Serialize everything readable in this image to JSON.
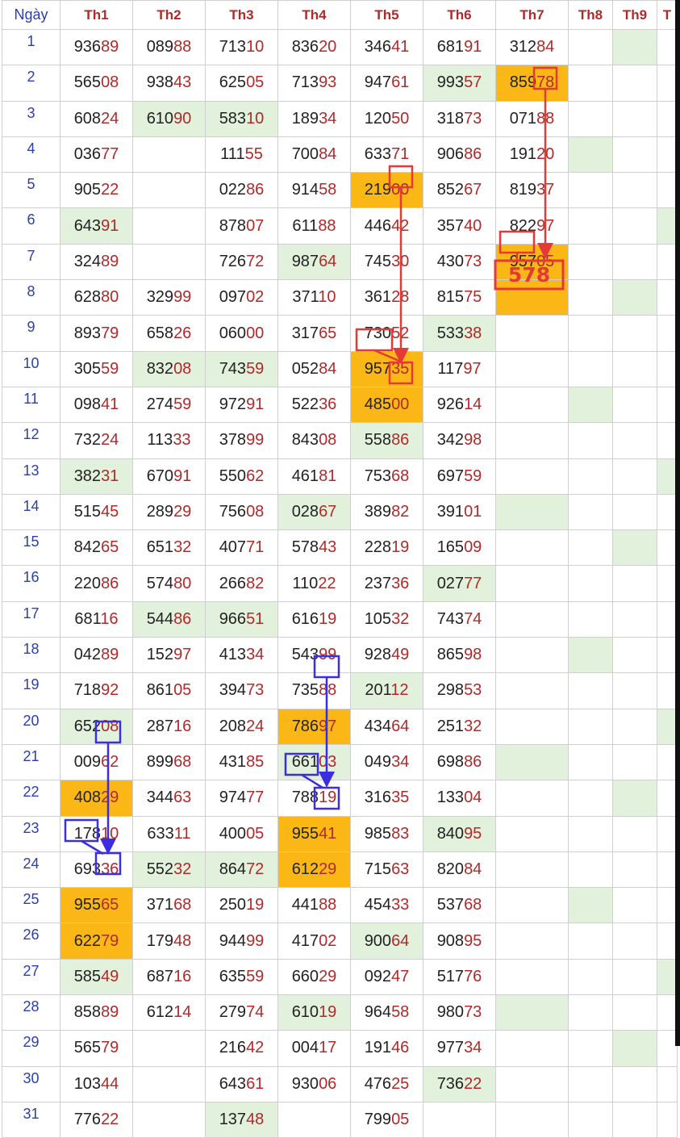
{
  "header": {
    "day_label": "Ngày",
    "columns": [
      "Th1",
      "Th2",
      "Th3",
      "Th4",
      "Th5",
      "Th6",
      "Th7",
      "Th8",
      "Th9",
      "T"
    ]
  },
  "colors": {
    "green": "#e2f1dc",
    "orange": "#fbb716",
    "red": "#e53935",
    "blue": "#3a2ee0",
    "tail": "#b02a2a"
  },
  "rows": [
    {
      "day": "1",
      "cells": [
        "93689",
        "08988",
        "71310",
        "83620",
        "34641",
        "68191",
        "31284",
        "",
        "",
        ""
      ],
      "hl": [
        "",
        "",
        "",
        "",
        "",
        "",
        "",
        "",
        "g",
        ""
      ]
    },
    {
      "day": "2",
      "cells": [
        "56508",
        "93843",
        "62505",
        "71393",
        "94761",
        "99357",
        "85978",
        "",
        "",
        ""
      ],
      "hl": [
        "",
        "",
        "",
        "",
        "",
        "g",
        "o",
        "",
        "",
        ""
      ]
    },
    {
      "day": "3",
      "cells": [
        "60824",
        "61090",
        "58310",
        "18934",
        "12050",
        "31873",
        "07188",
        "",
        "",
        ""
      ],
      "hl": [
        "",
        "g",
        "g",
        "",
        "",
        "",
        "",
        "",
        "",
        ""
      ]
    },
    {
      "day": "4",
      "cells": [
        "03677",
        "",
        "11155",
        "70084",
        "63371",
        "90686",
        "19120",
        "",
        "",
        ""
      ],
      "hl": [
        "",
        "",
        "",
        "",
        "",
        "",
        "",
        "g",
        "",
        ""
      ]
    },
    {
      "day": "5",
      "cells": [
        "90522",
        "",
        "02286",
        "91458",
        "21900",
        "85267",
        "81937",
        "",
        "",
        ""
      ],
      "hl": [
        "",
        "",
        "",
        "",
        "o",
        "",
        "",
        "",
        "",
        ""
      ]
    },
    {
      "day": "6",
      "cells": [
        "64391",
        "",
        "87807",
        "61188",
        "44642",
        "35740",
        "82297",
        "",
        "",
        ""
      ],
      "hl": [
        "g",
        "",
        "",
        "",
        "",
        "",
        "",
        "",
        "",
        "g"
      ]
    },
    {
      "day": "7",
      "cells": [
        "32489",
        "",
        "72672",
        "98764",
        "74530",
        "43073",
        "95705",
        "",
        "",
        ""
      ],
      "hl": [
        "",
        "",
        "",
        "g",
        "",
        "",
        "o",
        "",
        "",
        ""
      ]
    },
    {
      "day": "8",
      "cells": [
        "62880",
        "32999",
        "09702",
        "37110",
        "36128",
        "81575",
        "",
        "",
        "",
        ""
      ],
      "hl": [
        "",
        "",
        "",
        "",
        "",
        "",
        "o",
        "",
        "g",
        ""
      ]
    },
    {
      "day": "9",
      "cells": [
        "89379",
        "65826",
        "06000",
        "31765",
        "73052",
        "53338",
        "",
        "",
        "",
        ""
      ],
      "hl": [
        "",
        "",
        "",
        "",
        "",
        "g",
        "",
        "",
        "",
        ""
      ]
    },
    {
      "day": "10",
      "cells": [
        "30559",
        "83208",
        "74359",
        "05284",
        "95735",
        "11797",
        "",
        "",
        "",
        ""
      ],
      "hl": [
        "",
        "g",
        "g",
        "",
        "o",
        "",
        "",
        "",
        "",
        ""
      ]
    },
    {
      "day": "11",
      "cells": [
        "09841",
        "27459",
        "97291",
        "52236",
        "48500",
        "92614",
        "",
        "",
        "",
        ""
      ],
      "hl": [
        "",
        "",
        "",
        "",
        "o",
        "",
        "",
        "g",
        "",
        ""
      ]
    },
    {
      "day": "12",
      "cells": [
        "73224",
        "11333",
        "37899",
        "84308",
        "55886",
        "34298",
        "",
        "",
        "",
        ""
      ],
      "hl": [
        "",
        "",
        "",
        "",
        "g",
        "",
        "",
        "",
        "",
        ""
      ]
    },
    {
      "day": "13",
      "cells": [
        "38231",
        "67091",
        "55062",
        "46181",
        "75368",
        "69759",
        "",
        "",
        "",
        ""
      ],
      "hl": [
        "g",
        "",
        "",
        "",
        "",
        "",
        "",
        "",
        "",
        "g"
      ]
    },
    {
      "day": "14",
      "cells": [
        "51545",
        "28929",
        "75608",
        "02867",
        "38982",
        "39101",
        "",
        "",
        "",
        ""
      ],
      "hl": [
        "",
        "",
        "",
        "g",
        "",
        "",
        "g",
        "",
        "",
        ""
      ]
    },
    {
      "day": "15",
      "cells": [
        "84265",
        "65132",
        "40771",
        "57843",
        "22819",
        "16509",
        "",
        "",
        "",
        ""
      ],
      "hl": [
        "",
        "",
        "",
        "",
        "",
        "",
        "",
        "",
        "g",
        ""
      ]
    },
    {
      "day": "16",
      "cells": [
        "22086",
        "57480",
        "26682",
        "11022",
        "23736",
        "02777",
        "",
        "",
        "",
        ""
      ],
      "hl": [
        "",
        "",
        "",
        "",
        "",
        "g",
        "",
        "",
        "",
        ""
      ]
    },
    {
      "day": "17",
      "cells": [
        "68116",
        "54486",
        "96651",
        "61619",
        "10532",
        "74374",
        "",
        "",
        "",
        ""
      ],
      "hl": [
        "",
        "g",
        "g",
        "",
        "",
        "",
        "",
        "",
        "",
        ""
      ]
    },
    {
      "day": "18",
      "cells": [
        "04289",
        "15297",
        "41334",
        "54399",
        "92849",
        "86598",
        "",
        "",
        "",
        ""
      ],
      "hl": [
        "",
        "",
        "",
        "",
        "",
        "",
        "",
        "g",
        "",
        ""
      ]
    },
    {
      "day": "19",
      "cells": [
        "71892",
        "86105",
        "39473",
        "73588",
        "20112",
        "29853",
        "",
        "",
        "",
        ""
      ],
      "hl": [
        "",
        "",
        "",
        "",
        "g",
        "",
        "",
        "",
        "",
        ""
      ]
    },
    {
      "day": "20",
      "cells": [
        "65208",
        "28716",
        "20824",
        "78697",
        "43464",
        "25132",
        "",
        "",
        "",
        ""
      ],
      "hl": [
        "g",
        "",
        "",
        "o",
        "",
        "",
        "",
        "",
        "",
        "g"
      ]
    },
    {
      "day": "21",
      "cells": [
        "00962",
        "89968",
        "43185",
        "66103",
        "04934",
        "69886",
        "",
        "",
        "",
        ""
      ],
      "hl": [
        "",
        "",
        "",
        "g",
        "",
        "",
        "g",
        "",
        "",
        ""
      ]
    },
    {
      "day": "22",
      "cells": [
        "40829",
        "34463",
        "97477",
        "78819",
        "31635",
        "13304",
        "",
        "",
        "",
        ""
      ],
      "hl": [
        "o",
        "",
        "",
        "",
        "",
        "",
        "",
        "",
        "g",
        ""
      ]
    },
    {
      "day": "23",
      "cells": [
        "17810",
        "63311",
        "40005",
        "95541",
        "98583",
        "84095",
        "",
        "",
        "",
        ""
      ],
      "hl": [
        "",
        "",
        "",
        "o",
        "",
        "g",
        "",
        "",
        "",
        ""
      ]
    },
    {
      "day": "24",
      "cells": [
        "69336",
        "55232",
        "86472",
        "61229",
        "71563",
        "82084",
        "",
        "",
        "",
        ""
      ],
      "hl": [
        "",
        "g",
        "g",
        "o",
        "",
        "",
        "",
        "",
        "",
        ""
      ]
    },
    {
      "day": "25",
      "cells": [
        "95565",
        "37168",
        "25019",
        "44188",
        "45433",
        "53768",
        "",
        "",
        "",
        ""
      ],
      "hl": [
        "o",
        "",
        "",
        "",
        "",
        "",
        "",
        "g",
        "",
        ""
      ]
    },
    {
      "day": "26",
      "cells": [
        "62279",
        "17948",
        "94499",
        "41702",
        "90064",
        "90895",
        "",
        "",
        "",
        ""
      ],
      "hl": [
        "o",
        "",
        "",
        "",
        "g",
        "",
        "",
        "",
        "",
        ""
      ]
    },
    {
      "day": "27",
      "cells": [
        "58549",
        "68716",
        "63559",
        "66029",
        "09247",
        "51776",
        "",
        "",
        "",
        ""
      ],
      "hl": [
        "g",
        "",
        "",
        "",
        "",
        "",
        "",
        "",
        "",
        "g"
      ]
    },
    {
      "day": "28",
      "cells": [
        "85889",
        "61214",
        "27974",
        "61019",
        "96458",
        "98073",
        "",
        "",
        "",
        ""
      ],
      "hl": [
        "",
        "",
        "",
        "g",
        "",
        "",
        "g",
        "",
        "",
        ""
      ]
    },
    {
      "day": "29",
      "cells": [
        "56579",
        "",
        "21642",
        "00417",
        "19146",
        "97734",
        "",
        "",
        "",
        ""
      ],
      "hl": [
        "",
        "",
        "",
        "",
        "",
        "",
        "",
        "",
        "g",
        ""
      ]
    },
    {
      "day": "30",
      "cells": [
        "10344",
        "",
        "64361",
        "93006",
        "47625",
        "73622",
        "",
        "",
        "",
        ""
      ],
      "hl": [
        "",
        "",
        "",
        "",
        "",
        "g",
        "",
        "",
        "",
        ""
      ]
    },
    {
      "day": "31",
      "cells": [
        "77622",
        "",
        "13748",
        "",
        "79905",
        "",
        "",
        "",
        "",
        ""
      ],
      "hl": [
        "",
        "",
        "g",
        "",
        "",
        "",
        "",
        "",
        "",
        ""
      ]
    }
  ],
  "annotations": {
    "result_text": "578"
  }
}
